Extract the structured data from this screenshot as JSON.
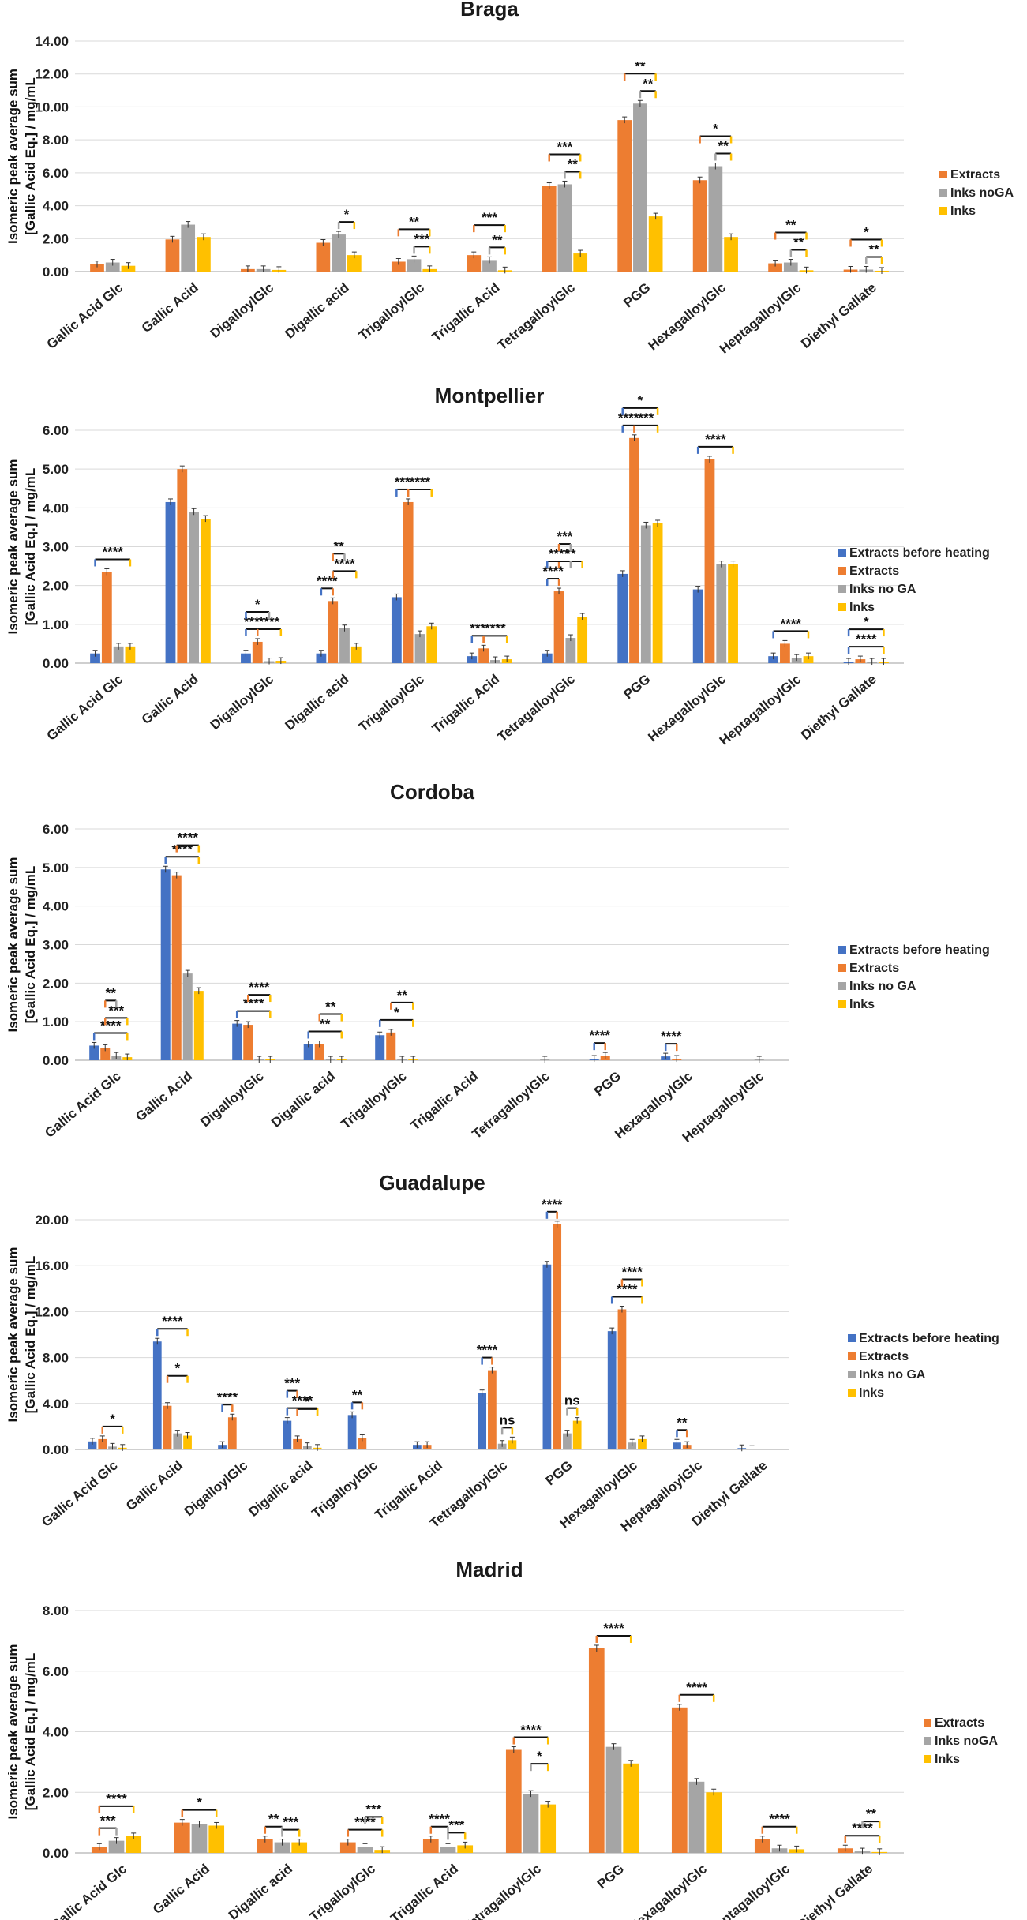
{
  "colors": {
    "Extracts before heating": "#4472C4",
    "Extracts": "#ED7D31",
    "Inks noGA": "#A5A5A5",
    "Inks no GA": "#A5A5A5",
    "Inks": "#FFC000"
  },
  "chart_data": [
    {
      "type": "bar",
      "title": "Braga",
      "ylabel": "Isomeric peak average sum\n[Gallic Acid Eq.] / mg/mL",
      "ylim": [
        0,
        14
      ],
      "ytick_step": 2,
      "ytick_labels": [
        "0.00",
        "2.00",
        "4.00",
        "6.00",
        "8.00",
        "10.00",
        "12.00",
        "14.00"
      ],
      "categories": [
        "Gallic Acid Glc",
        "Gallic Acid",
        "DigalloylGlc",
        "Digallic acid",
        "TrigalloylGlc",
        "Trigallic Acid",
        "TetragalloylGlc",
        "PGG",
        "HexagalloylGlc",
        "HeptagalloylGlc",
        "Diethyl Gallate"
      ],
      "series": [
        {
          "name": "Extracts",
          "values": [
            0.45,
            1.95,
            0.15,
            1.75,
            0.6,
            1.0,
            5.2,
            9.2,
            5.55,
            0.5,
            0.12
          ]
        },
        {
          "name": "Inks noGA",
          "values": [
            0.55,
            2.85,
            0.15,
            2.25,
            0.75,
            0.7,
            5.3,
            10.2,
            6.4,
            0.55,
            0.12
          ]
        },
        {
          "name": "Inks",
          "values": [
            0.35,
            2.1,
            0.1,
            1.0,
            0.15,
            0.08,
            1.1,
            3.35,
            2.1,
            0.08,
            0.05
          ]
        }
      ],
      "significance": [
        {
          "cat": 3,
          "from": 1,
          "to": 2,
          "level": 1,
          "label": "*"
        },
        {
          "cat": 4,
          "from": 0,
          "to": 2,
          "level": 2,
          "label": "**"
        },
        {
          "cat": 4,
          "from": 1,
          "to": 2,
          "level": 1,
          "label": "***"
        },
        {
          "cat": 5,
          "from": 0,
          "to": 2,
          "level": 2,
          "label": "***"
        },
        {
          "cat": 5,
          "from": 1,
          "to": 2,
          "level": 1,
          "label": "**"
        },
        {
          "cat": 6,
          "from": 0,
          "to": 2,
          "level": 2,
          "label": "***"
        },
        {
          "cat": 6,
          "from": 1,
          "to": 2,
          "level": 1,
          "label": "**"
        },
        {
          "cat": 7,
          "from": 0,
          "to": 2,
          "level": 2,
          "label": "**"
        },
        {
          "cat": 7,
          "from": 1,
          "to": 2,
          "level": 1,
          "label": "**"
        },
        {
          "cat": 8,
          "from": 0,
          "to": 2,
          "level": 2,
          "label": "*"
        },
        {
          "cat": 8,
          "from": 1,
          "to": 2,
          "level": 1,
          "label": "**"
        },
        {
          "cat": 9,
          "from": 0,
          "to": 2,
          "level": 2,
          "label": "**"
        },
        {
          "cat": 9,
          "from": 1,
          "to": 2,
          "level": 1,
          "label": "**"
        },
        {
          "cat": 10,
          "from": 0,
          "to": 2,
          "level": 2,
          "label": "*"
        },
        {
          "cat": 10,
          "from": 1,
          "to": 2,
          "level": 1,
          "label": "**"
        }
      ]
    },
    {
      "type": "bar",
      "title": "Montpellier",
      "ylabel": "Isomeric peak average sum\n[Gallic Acid Eq.] / mg/mL",
      "ylim": [
        0,
        6
      ],
      "ytick_step": 1,
      "ytick_labels": [
        "0.00",
        "1.00",
        "2.00",
        "3.00",
        "4.00",
        "5.00",
        "6.00"
      ],
      "categories": [
        "Gallic Acid Glc",
        "Gallic Acid",
        "DigalloylGlc",
        "Digallic acid",
        "TrigalloylGlc",
        "Trigallic Acid",
        "TetragalloylGlc",
        "PGG",
        "HexagalloylGlc",
        "HeptagalloylGlc",
        "Diethyl Gallate"
      ],
      "series": [
        {
          "name": "Extracts before heating",
          "values": [
            0.25,
            4.15,
            0.25,
            0.25,
            1.7,
            0.18,
            0.25,
            2.3,
            1.9,
            0.18,
            0.04
          ]
        },
        {
          "name": "Extracts",
          "values": [
            2.35,
            5.0,
            0.55,
            1.6,
            4.15,
            0.38,
            1.85,
            5.8,
            5.25,
            0.5,
            0.1
          ]
        },
        {
          "name": "Inks no GA",
          "values": [
            0.43,
            3.9,
            0.05,
            0.9,
            0.75,
            0.08,
            0.65,
            3.55,
            2.55,
            0.14,
            0.04
          ]
        },
        {
          "name": "Inks",
          "values": [
            0.43,
            3.72,
            0.06,
            0.43,
            0.95,
            0.1,
            1.2,
            3.6,
            2.55,
            0.18,
            0.04
          ]
        }
      ],
      "significance": [
        {
          "cat": 0,
          "from": 0,
          "to": 3,
          "level": 1,
          "label": "****"
        },
        {
          "cat": 2,
          "from": 0,
          "to": 1,
          "level": 1,
          "label": "***"
        },
        {
          "cat": 2,
          "from": 1,
          "to": 3,
          "level": 1,
          "label": "****"
        },
        {
          "cat": 2,
          "from": 0,
          "to": 2,
          "level": 2,
          "label": "*"
        },
        {
          "cat": 3,
          "from": 0,
          "to": 1,
          "level": 1,
          "label": "****"
        },
        {
          "cat": 3,
          "from": 1,
          "to": 3,
          "level": 2,
          "label": "****"
        },
        {
          "cat": 3,
          "from": 1,
          "to": 2,
          "level": 3,
          "label": "**"
        },
        {
          "cat": 4,
          "from": 0,
          "to": 1,
          "level": 1,
          "label": "***"
        },
        {
          "cat": 4,
          "from": 1,
          "to": 3,
          "level": 1,
          "label": "****"
        },
        {
          "cat": 5,
          "from": 0,
          "to": 1,
          "level": 1,
          "label": "***"
        },
        {
          "cat": 5,
          "from": 1,
          "to": 3,
          "level": 1,
          "label": "****"
        },
        {
          "cat": 6,
          "from": 0,
          "to": 1,
          "level": 1,
          "label": "****"
        },
        {
          "cat": 6,
          "from": 1,
          "to": 3,
          "level": 2,
          "label": "**"
        },
        {
          "cat": 6,
          "from": 0,
          "to": 2,
          "level": 2,
          "label": "****"
        },
        {
          "cat": 6,
          "from": 1,
          "to": 2,
          "level": 3,
          "label": "***"
        },
        {
          "cat": 7,
          "from": 0,
          "to": 1,
          "level": 1,
          "label": "****"
        },
        {
          "cat": 7,
          "from": 1,
          "to": 3,
          "level": 1,
          "label": "***"
        },
        {
          "cat": 7,
          "from": 0,
          "to": 3,
          "level": 2,
          "label": "*"
        },
        {
          "cat": 8,
          "from": 0,
          "to": 3,
          "level": 1,
          "label": "****"
        },
        {
          "cat": 9,
          "from": 0,
          "to": 3,
          "level": 1,
          "label": "****"
        },
        {
          "cat": 10,
          "from": 0,
          "to": 3,
          "level": 1,
          "label": "****"
        },
        {
          "cat": 10,
          "from": 0,
          "to": 3,
          "level": 2,
          "label": "*"
        }
      ]
    },
    {
      "type": "bar",
      "title": "Cordoba",
      "ylabel": "Isomeric peak average sum\n[Gallic Acid Eq.] / mg/mL",
      "ylim": [
        0,
        6
      ],
      "ytick_step": 1,
      "ytick_labels": [
        "0.00",
        "1.00",
        "2.00",
        "3.00",
        "4.00",
        "5.00",
        "6.00"
      ],
      "categories": [
        "Gallic Acid Glc",
        "Gallic Acid",
        "DigalloylGlc",
        "Digallic acid",
        "TrigalloylGlc",
        "Trigallic Acid",
        "TetragalloylGlc",
        "PGG",
        "HexagalloylGlc",
        "HeptagalloylGlc"
      ],
      "series": [
        {
          "name": "Extracts before heating",
          "values": [
            0.38,
            4.95,
            0.95,
            0.42,
            0.65,
            0.0,
            0.0,
            0.04,
            0.1,
            0.0
          ]
        },
        {
          "name": "Extracts",
          "values": [
            0.32,
            4.8,
            0.92,
            0.42,
            0.72,
            0.0,
            0.0,
            0.12,
            0.04,
            0.0
          ]
        },
        {
          "name": "Inks no GA",
          "values": [
            0.12,
            2.25,
            0.02,
            0.02,
            0.02,
            0.0,
            0.02,
            0.0,
            0.0,
            0.02
          ]
        },
        {
          "name": "Inks",
          "values": [
            0.08,
            1.8,
            0.02,
            0.02,
            0.02,
            0.0,
            0.0,
            0.0,
            0.0,
            0.0
          ]
        }
      ],
      "significance": [
        {
          "cat": 0,
          "from": 0,
          "to": 3,
          "level": 1,
          "label": "****"
        },
        {
          "cat": 0,
          "from": 1,
          "to": 3,
          "level": 2,
          "label": "***"
        },
        {
          "cat": 0,
          "from": 1,
          "to": 2,
          "level": 3,
          "label": "**"
        },
        {
          "cat": 1,
          "from": 0,
          "to": 3,
          "level": 1,
          "label": "****"
        },
        {
          "cat": 1,
          "from": 1,
          "to": 3,
          "level": 2,
          "label": "****"
        },
        {
          "cat": 2,
          "from": 0,
          "to": 3,
          "level": 1,
          "label": "****"
        },
        {
          "cat": 2,
          "from": 1,
          "to": 3,
          "level": 2,
          "label": "****"
        },
        {
          "cat": 3,
          "from": 0,
          "to": 3,
          "level": 1,
          "label": "**"
        },
        {
          "cat": 3,
          "from": 1,
          "to": 3,
          "level": 2,
          "label": "**"
        },
        {
          "cat": 4,
          "from": 0,
          "to": 3,
          "level": 1,
          "label": "*"
        },
        {
          "cat": 4,
          "from": 1,
          "to": 3,
          "level": 2,
          "label": "**"
        },
        {
          "cat": 7,
          "from": 0,
          "to": 1,
          "level": 1,
          "label": "****"
        },
        {
          "cat": 8,
          "from": 0,
          "to": 1,
          "level": 1,
          "label": "****"
        }
      ]
    },
    {
      "type": "bar",
      "title": "Guadalupe",
      "ylabel": "Isomeric peak average sum\n[Gallic Acid Eq.] / mg/mL",
      "ylim": [
        0,
        20
      ],
      "ytick_step": 4,
      "ytick_labels": [
        "0.00",
        "4.00",
        "8.00",
        "12.00",
        "16.00",
        "20.00"
      ],
      "categories": [
        "Gallic Acid Glc",
        "Gallic Acid",
        "DigalloylGlc",
        "Digallic acid",
        "TrigalloylGlc",
        "Trigallic Acid",
        "TetragalloylGlc",
        "PGG",
        "HexagalloylGlc",
        "HeptagalloylGlc",
        "Diethyl Gallate"
      ],
      "series": [
        {
          "name": "Extracts before heating",
          "values": [
            0.7,
            9.4,
            0.4,
            2.5,
            3.0,
            0.4,
            4.9,
            16.1,
            10.3,
            0.6,
            0.12
          ]
        },
        {
          "name": "Extracts",
          "values": [
            0.9,
            3.8,
            2.8,
            0.9,
            1.0,
            0.4,
            6.9,
            19.6,
            12.2,
            0.4,
            0.05
          ]
        },
        {
          "name": "Inks no GA",
          "values": [
            0.25,
            1.4,
            0.0,
            0.3,
            0.0,
            0.0,
            0.5,
            1.4,
            0.6,
            0.0,
            0.0
          ]
        },
        {
          "name": "Inks",
          "values": [
            0.15,
            1.2,
            0.0,
            0.15,
            0.0,
            0.0,
            0.8,
            2.5,
            0.9,
            0.0,
            0.0
          ]
        }
      ],
      "significance": [
        {
          "cat": 0,
          "from": 1,
          "to": 3,
          "level": 1,
          "label": "*"
        },
        {
          "cat": 1,
          "from": 0,
          "to": 3,
          "level": 1,
          "label": "****"
        },
        {
          "cat": 1,
          "from": 1,
          "to": 3,
          "level": 2,
          "label": "*"
        },
        {
          "cat": 2,
          "from": 0,
          "to": 1,
          "level": 1,
          "label": "****"
        },
        {
          "cat": 3,
          "from": 0,
          "to": 3,
          "level": 1,
          "label": "****"
        },
        {
          "cat": 3,
          "from": 0,
          "to": 1,
          "level": 2,
          "label": "***"
        },
        {
          "cat": 3,
          "from": 1,
          "to": 3,
          "level": 2,
          "label": "*"
        },
        {
          "cat": 4,
          "from": 0,
          "to": 1,
          "level": 1,
          "label": "**"
        },
        {
          "cat": 6,
          "from": 0,
          "to": 1,
          "level": 1,
          "label": "****"
        },
        {
          "cat": 6,
          "from": 2,
          "to": 3,
          "level": 1,
          "label": "ns"
        },
        {
          "cat": 7,
          "from": 0,
          "to": 1,
          "level": 1,
          "label": "****"
        },
        {
          "cat": 7,
          "from": 2,
          "to": 3,
          "level": 1,
          "label": "ns"
        },
        {
          "cat": 8,
          "from": 0,
          "to": 3,
          "level": 1,
          "label": "****"
        },
        {
          "cat": 8,
          "from": 1,
          "to": 3,
          "level": 2,
          "label": "****"
        },
        {
          "cat": 9,
          "from": 0,
          "to": 1,
          "level": 1,
          "label": "**"
        }
      ]
    },
    {
      "type": "bar",
      "title": "Madrid",
      "ylabel": "Isomeric peak average sum\n[Gallic Acid Eq.] / mg/mL",
      "ylim": [
        0,
        8
      ],
      "ytick_step": 2,
      "ytick_labels": [
        "0.00",
        "2.00",
        "4.00",
        "6.00",
        "8.00"
      ],
      "categories": [
        "Gallic Acid Glc",
        "Gallic Acid",
        "Digallic acid",
        "TrigalloylGlc",
        "Trigallic Acid",
        "TetragalloylGlc",
        "PGG",
        "HexagalloylGlc",
        "HeptagalloylGlc",
        "Diethyl Gallate"
      ],
      "series": [
        {
          "name": "Extracts",
          "values": [
            0.2,
            1.0,
            0.45,
            0.35,
            0.45,
            3.4,
            6.75,
            4.8,
            0.45,
            0.15
          ]
        },
        {
          "name": "Inks noGA",
          "values": [
            0.4,
            0.95,
            0.35,
            0.2,
            0.2,
            1.95,
            3.5,
            2.35,
            0.15,
            0.05
          ]
        },
        {
          "name": "Inks",
          "values": [
            0.55,
            0.9,
            0.35,
            0.1,
            0.25,
            1.6,
            2.95,
            2.0,
            0.12,
            0.03
          ]
        }
      ],
      "significance": [
        {
          "cat": 0,
          "from": 0,
          "to": 2,
          "level": 2,
          "label": "****"
        },
        {
          "cat": 0,
          "from": 0,
          "to": 1,
          "level": 1,
          "label": "***"
        },
        {
          "cat": 1,
          "from": 0,
          "to": 2,
          "level": 1,
          "label": "*"
        },
        {
          "cat": 2,
          "from": 0,
          "to": 1,
          "level": 1,
          "label": "**"
        },
        {
          "cat": 2,
          "from": 1,
          "to": 2,
          "level": 1,
          "label": "***"
        },
        {
          "cat": 3,
          "from": 0,
          "to": 2,
          "level": 1,
          "label": "****"
        },
        {
          "cat": 3,
          "from": 1,
          "to": 2,
          "level": 2,
          "label": "***"
        },
        {
          "cat": 4,
          "from": 0,
          "to": 1,
          "level": 1,
          "label": "****"
        },
        {
          "cat": 4,
          "from": 1,
          "to": 2,
          "level": 1,
          "label": "***"
        },
        {
          "cat": 5,
          "from": 0,
          "to": 2,
          "level": 1,
          "label": "****"
        },
        {
          "cat": 5,
          "from": 1,
          "to": 2,
          "level": 2,
          "label": "*"
        },
        {
          "cat": 6,
          "from": 0,
          "to": 2,
          "level": 1,
          "label": "****"
        },
        {
          "cat": 7,
          "from": 0,
          "to": 2,
          "level": 1,
          "label": "****"
        },
        {
          "cat": 8,
          "from": 0,
          "to": 2,
          "level": 1,
          "label": "****"
        },
        {
          "cat": 9,
          "from": 0,
          "to": 2,
          "level": 1,
          "label": "****"
        },
        {
          "cat": 9,
          "from": 1,
          "to": 2,
          "level": 2,
          "label": "**"
        }
      ]
    }
  ]
}
